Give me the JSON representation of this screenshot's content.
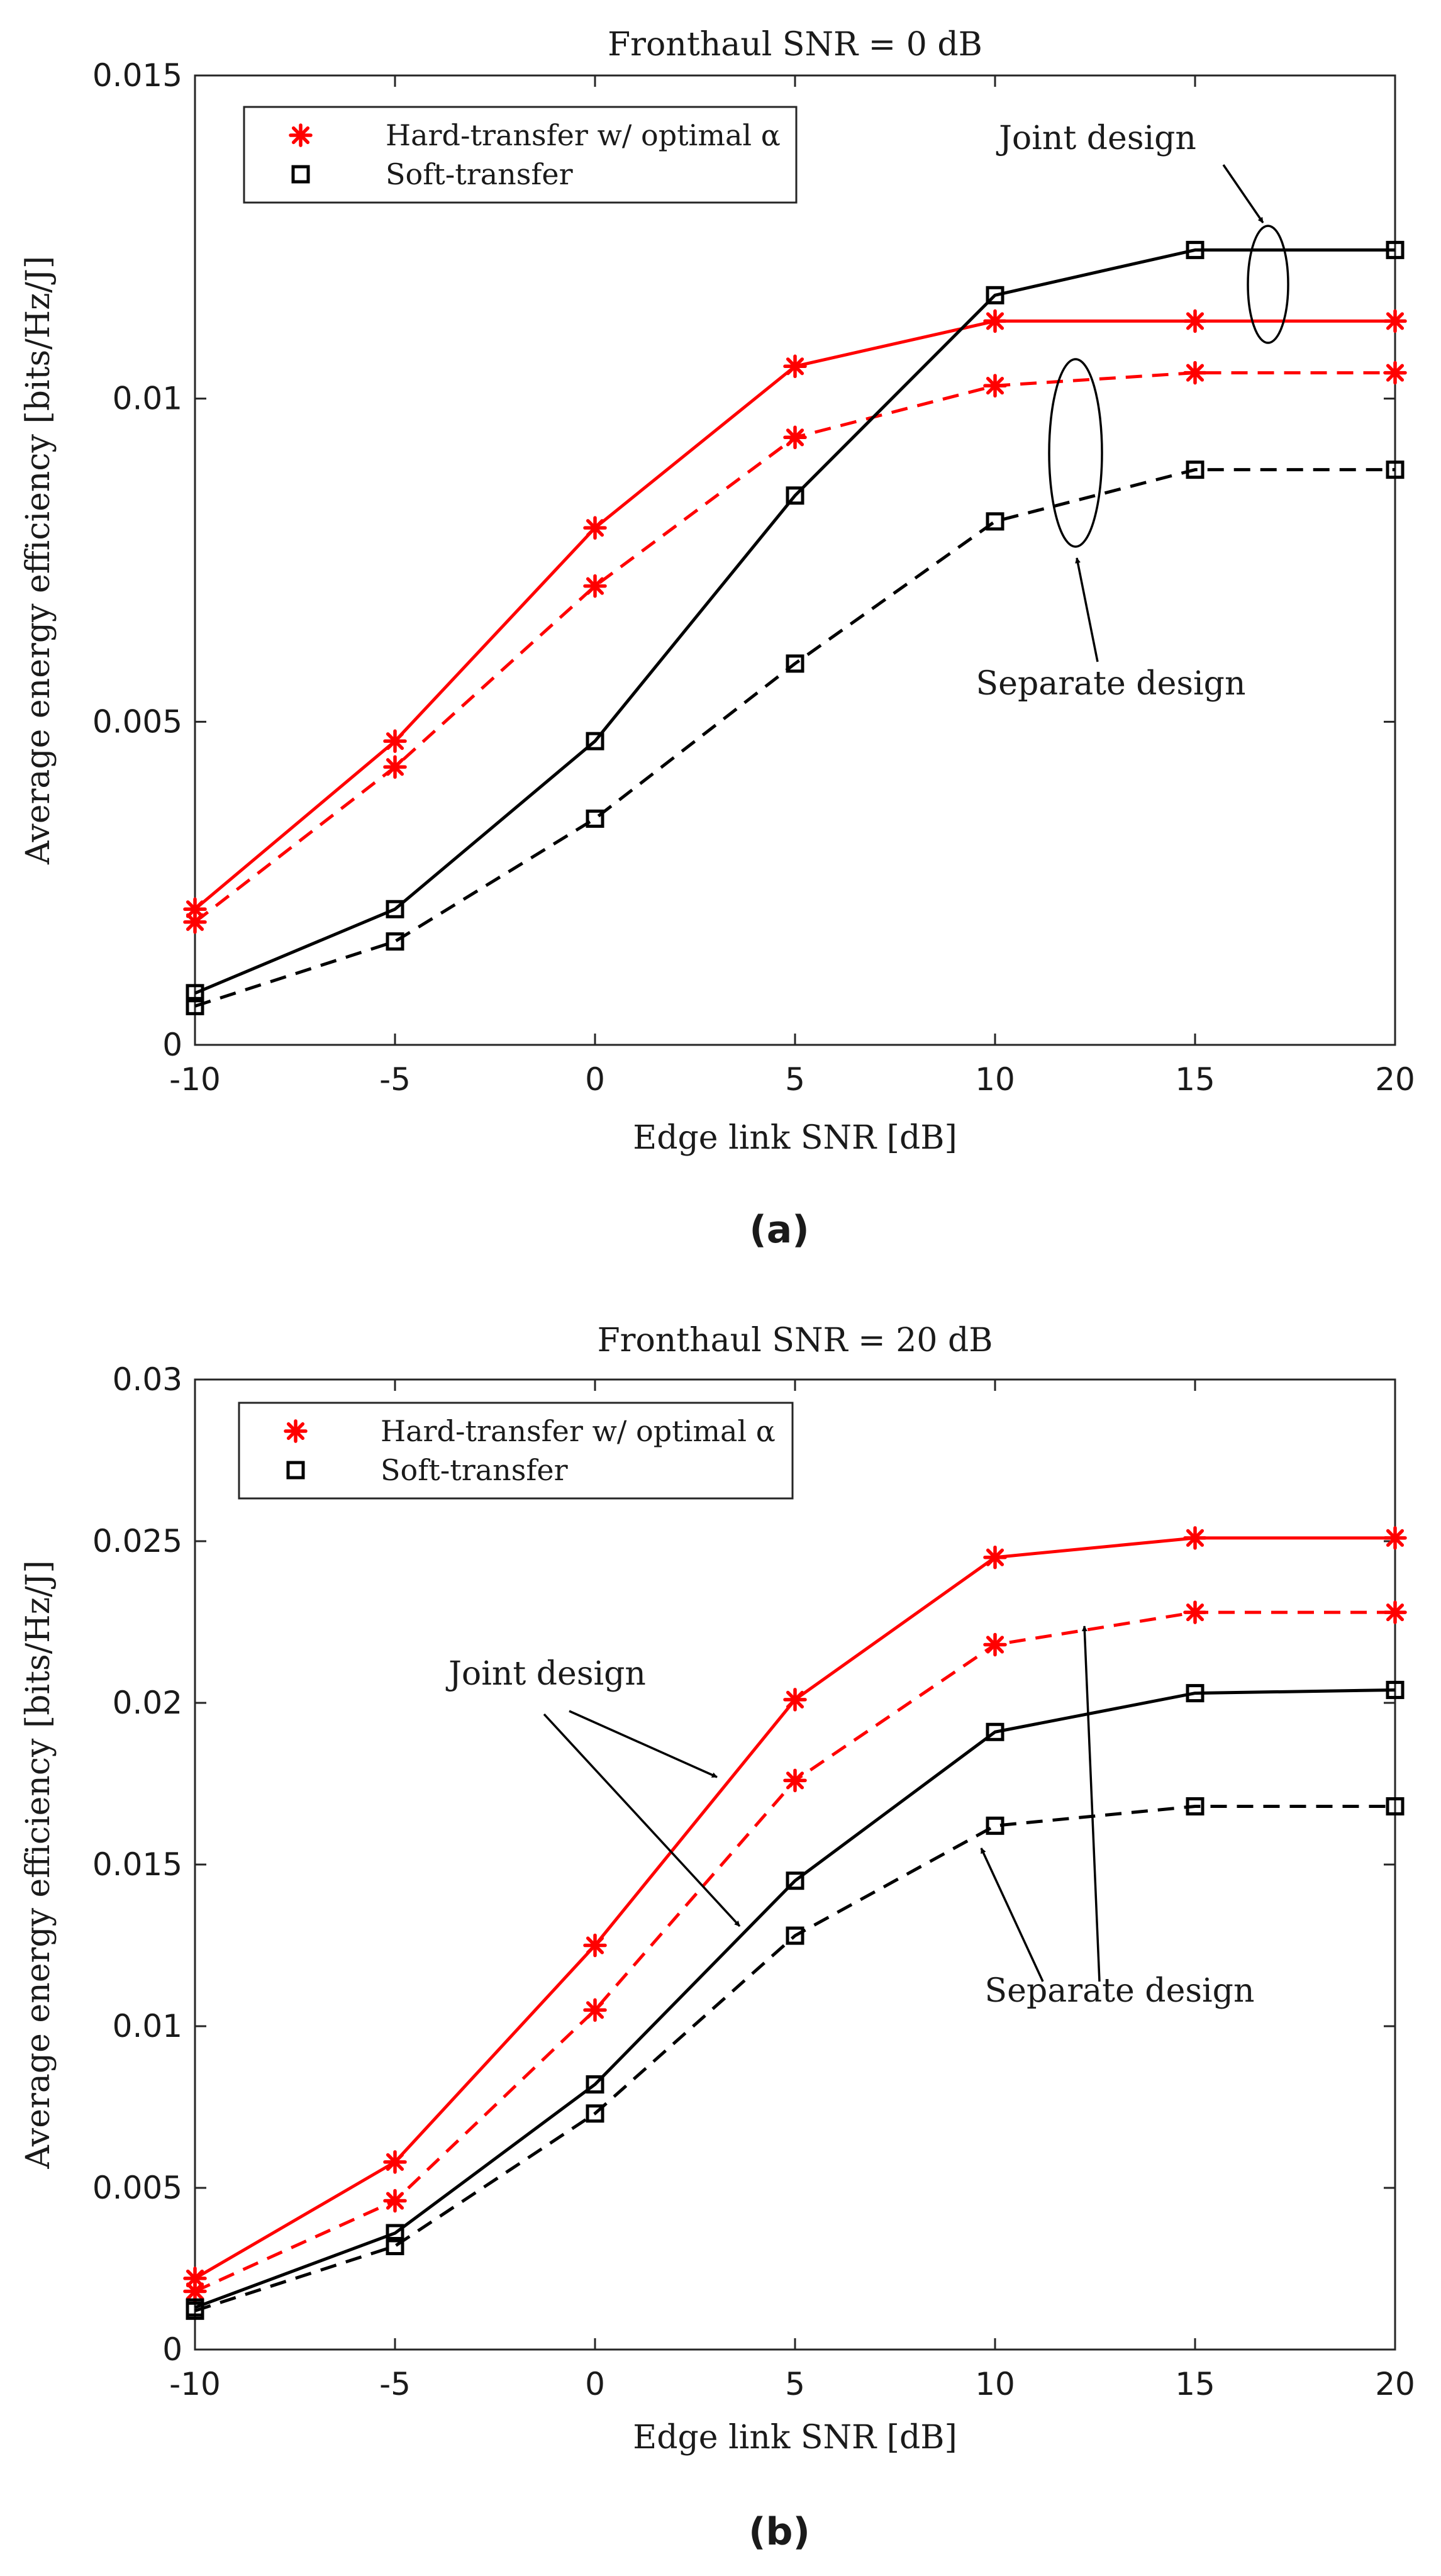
{
  "chart_data": [
    {
      "type": "line",
      "caption": "(a)",
      "title": "Fronthaul SNR = 0 dB",
      "xlabel": "Edge link SNR [dB]",
      "ylabel": "Average energy efficiency [bits/Hz/J]",
      "x": [
        -10,
        -5,
        0,
        5,
        10,
        15,
        20
      ],
      "xticks": [
        -10,
        -5,
        0,
        5,
        10,
        15,
        20
      ],
      "xlim": [
        -10,
        20
      ],
      "ylim": [
        0,
        0.015
      ],
      "yticks": [
        0,
        0.005,
        0.01,
        0.015
      ],
      "ytick_labels": [
        "0",
        "0.005",
        "0.01",
        "0.015"
      ],
      "legend": [
        {
          "label": "Hard-transfer w/ optimal α",
          "marker": "asterisk",
          "color": "#ff0000"
        },
        {
          "label": "Soft-transfer",
          "marker": "square",
          "color": "#000000"
        }
      ],
      "series": [
        {
          "name": "Hard-transfer w/ optimal α (joint design)",
          "design": "joint",
          "color": "#ff0000",
          "marker": "asterisk",
          "dashed": false,
          "values": [
            0.0021,
            0.0047,
            0.008,
            0.0105,
            0.0112,
            0.0112,
            0.0112
          ]
        },
        {
          "name": "Hard-transfer w/ optimal α (separate design)",
          "design": "separate",
          "color": "#ff0000",
          "marker": "asterisk",
          "dashed": true,
          "values": [
            0.0019,
            0.0043,
            0.0071,
            0.0094,
            0.0102,
            0.0104,
            0.0104
          ]
        },
        {
          "name": "Soft-transfer (joint design)",
          "design": "joint",
          "color": "#000000",
          "marker": "square",
          "dashed": false,
          "values": [
            0.0008,
            0.0021,
            0.0047,
            0.0085,
            0.0116,
            0.0123,
            0.0123
          ]
        },
        {
          "name": "Soft-transfer (separate design)",
          "design": "separate",
          "color": "#000000",
          "marker": "square",
          "dashed": true,
          "values": [
            0.0006,
            0.0016,
            0.0035,
            0.0059,
            0.0081,
            0.0089,
            0.0089
          ]
        }
      ],
      "annotations": [
        {
          "text": "Joint design"
        },
        {
          "text": "Separate design"
        }
      ]
    },
    {
      "type": "line",
      "caption": "(b)",
      "title": "Fronthaul SNR = 20 dB",
      "xlabel": "Edge link SNR [dB]",
      "ylabel": "Average energy efficiency [bits/Hz/J]",
      "x": [
        -10,
        -5,
        0,
        5,
        10,
        15,
        20
      ],
      "xticks": [
        -10,
        -5,
        0,
        5,
        10,
        15,
        20
      ],
      "xlim": [
        -10,
        20
      ],
      "ylim": [
        0,
        0.03
      ],
      "yticks": [
        0,
        0.005,
        0.01,
        0.015,
        0.02,
        0.025,
        0.03
      ],
      "ytick_labels": [
        "0",
        "0.005",
        "0.01",
        "0.015",
        "0.02",
        "0.025",
        "0.03"
      ],
      "legend": [
        {
          "label": "Hard-transfer w/ optimal α",
          "marker": "asterisk",
          "color": "#ff0000"
        },
        {
          "label": "Soft-transfer",
          "marker": "square",
          "color": "#000000"
        }
      ],
      "series": [
        {
          "name": "Hard-transfer w/ optimal α (joint design)",
          "design": "joint",
          "color": "#ff0000",
          "marker": "asterisk",
          "dashed": false,
          "values": [
            0.0022,
            0.0058,
            0.0125,
            0.0201,
            0.0245,
            0.0251,
            0.0251
          ]
        },
        {
          "name": "Hard-transfer w/ optimal α (separate design)",
          "design": "separate",
          "color": "#ff0000",
          "marker": "asterisk",
          "dashed": true,
          "values": [
            0.0018,
            0.0046,
            0.0105,
            0.0176,
            0.0218,
            0.0228,
            0.0228
          ]
        },
        {
          "name": "Soft-transfer (joint design)",
          "design": "joint",
          "color": "#000000",
          "marker": "square",
          "dashed": false,
          "values": [
            0.0013,
            0.0036,
            0.0082,
            0.0145,
            0.0191,
            0.0203,
            0.0204
          ]
        },
        {
          "name": "Soft-transfer (separate design)",
          "design": "separate",
          "color": "#000000",
          "marker": "square",
          "dashed": true,
          "values": [
            0.0012,
            0.0032,
            0.0073,
            0.0128,
            0.0162,
            0.0168,
            0.0168
          ]
        }
      ],
      "annotations": [
        {
          "text": "Joint design"
        },
        {
          "text": "Separate design"
        }
      ]
    }
  ]
}
